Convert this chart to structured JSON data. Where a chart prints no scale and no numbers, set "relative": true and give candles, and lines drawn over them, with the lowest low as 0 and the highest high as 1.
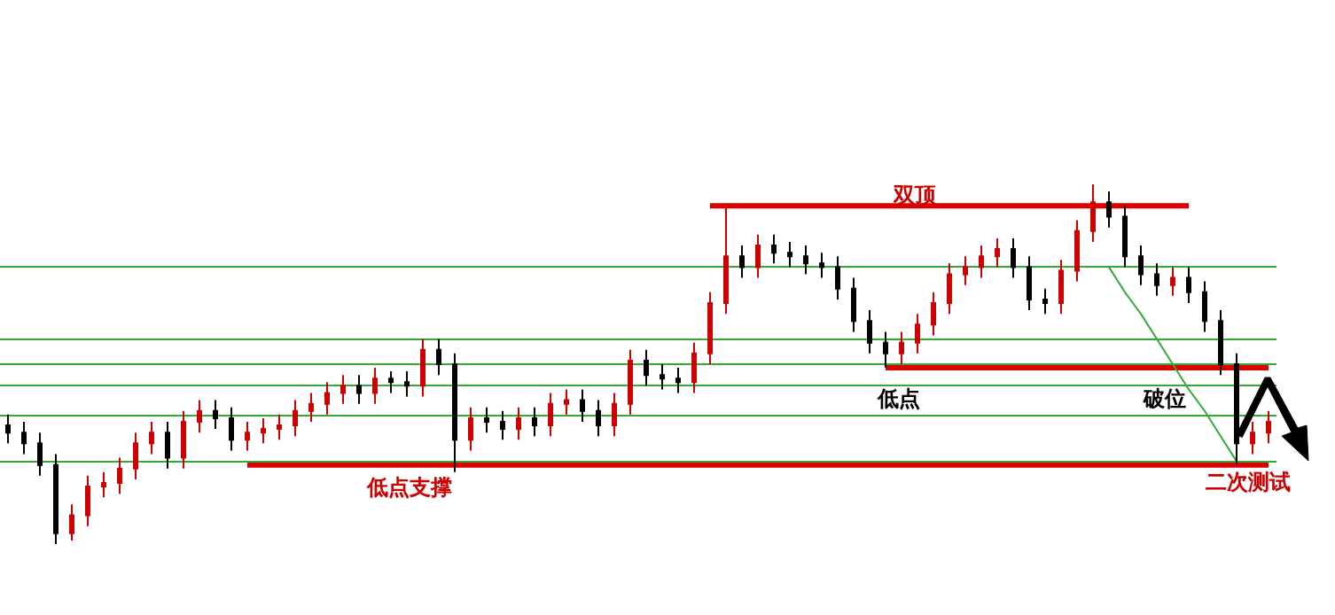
{
  "chart_data": {
    "type": "candlestick",
    "relative": true,
    "categories": [
      null,
      null,
      null,
      null,
      null,
      null,
      null,
      null,
      null,
      null,
      null,
      null,
      null,
      null,
      null,
      null,
      null,
      null,
      null,
      null,
      null,
      null,
      null,
      null,
      null,
      null,
      null,
      null,
      null,
      null,
      null,
      null,
      null,
      null,
      null,
      null,
      null,
      null,
      null,
      null,
      null,
      null,
      null,
      null,
      null,
      null,
      null,
      null,
      null,
      null,
      null,
      null,
      null,
      null,
      null,
      null,
      null,
      null,
      null,
      null,
      null,
      null,
      null,
      null,
      null,
      null,
      null,
      null,
      null,
      null,
      null,
      null,
      null,
      null,
      null,
      null,
      null,
      null,
      null,
      null
    ],
    "ohlc": [
      [
        0.33,
        0.36,
        0.28,
        0.31
      ],
      [
        0.31,
        0.34,
        0.25,
        0.28
      ],
      [
        0.28,
        0.31,
        0.19,
        0.22
      ],
      [
        0.22,
        0.25,
        0,
        0.03
      ],
      [
        0.03,
        0.11,
        0.01,
        0.08
      ],
      [
        0.08,
        0.19,
        0.05,
        0.16
      ],
      [
        0.16,
        0.2,
        0.13,
        0.17
      ],
      [
        0.17,
        0.24,
        0.14,
        0.21
      ],
      [
        0.21,
        0.31,
        0.18,
        0.28
      ],
      [
        0.28,
        0.34,
        0.25,
        0.31
      ],
      [
        0.31,
        0.34,
        0.21,
        0.24
      ],
      [
        0.24,
        0.37,
        0.21,
        0.34
      ],
      [
        0.34,
        0.4,
        0.31,
        0.37
      ],
      [
        0.37,
        0.4,
        0.32,
        0.35
      ],
      [
        0.35,
        0.38,
        0.26,
        0.29
      ],
      [
        0.29,
        0.34,
        0.26,
        0.31
      ],
      [
        0.31,
        0.35,
        0.28,
        0.32
      ],
      [
        0.32,
        0.36,
        0.29,
        0.33
      ],
      [
        0.33,
        0.4,
        0.3,
        0.37
      ],
      [
        0.37,
        0.42,
        0.34,
        0.39
      ],
      [
        0.39,
        0.45,
        0.36,
        0.42
      ],
      [
        0.42,
        0.47,
        0.39,
        0.44
      ],
      [
        0.44,
        0.47,
        0.39,
        0.42
      ],
      [
        0.42,
        0.49,
        0.39,
        0.46
      ],
      [
        0.46,
        0.48,
        0.42,
        0.45
      ],
      [
        0.45,
        0.48,
        0.41,
        0.44
      ],
      [
        0.44,
        0.57,
        0.41,
        0.54
      ],
      [
        0.54,
        0.57,
        0.47,
        0.5
      ],
      [
        0.5,
        0.53,
        0.2,
        0.29
      ],
      [
        0.29,
        0.38,
        0.26,
        0.35
      ],
      [
        0.35,
        0.38,
        0.31,
        0.34
      ],
      [
        0.34,
        0.37,
        0.29,
        0.32
      ],
      [
        0.32,
        0.38,
        0.29,
        0.35
      ],
      [
        0.35,
        0.38,
        0.3,
        0.33
      ],
      [
        0.33,
        0.42,
        0.3,
        0.39
      ],
      [
        0.39,
        0.43,
        0.36,
        0.4
      ],
      [
        0.4,
        0.43,
        0.34,
        0.37
      ],
      [
        0.37,
        0.4,
        0.3,
        0.33
      ],
      [
        0.33,
        0.42,
        0.3,
        0.39
      ],
      [
        0.39,
        0.54,
        0.36,
        0.51
      ],
      [
        0.51,
        0.54,
        0.44,
        0.47
      ],
      [
        0.47,
        0.5,
        0.43,
        0.46
      ],
      [
        0.46,
        0.49,
        0.42,
        0.45
      ],
      [
        0.45,
        0.56,
        0.42,
        0.53
      ],
      [
        0.53,
        0.7,
        0.5,
        0.67
      ],
      [
        0.67,
        0.94,
        0.64,
        0.8
      ],
      [
        0.8,
        0.83,
        0.74,
        0.77
      ],
      [
        0.77,
        0.86,
        0.74,
        0.83
      ],
      [
        0.83,
        0.86,
        0.78,
        0.81
      ],
      [
        0.81,
        0.84,
        0.77,
        0.8
      ],
      [
        0.8,
        0.83,
        0.75,
        0.78
      ],
      [
        0.78,
        0.81,
        0.74,
        0.77
      ],
      [
        0.77,
        0.8,
        0.68,
        0.71
      ],
      [
        0.71,
        0.74,
        0.59,
        0.62
      ],
      [
        0.62,
        0.65,
        0.53,
        0.56
      ],
      [
        0.56,
        0.59,
        0.49,
        0.53
      ],
      [
        0.53,
        0.59,
        0.5,
        0.56
      ],
      [
        0.56,
        0.64,
        0.53,
        0.61
      ],
      [
        0.61,
        0.7,
        0.58,
        0.67
      ],
      [
        0.67,
        0.78,
        0.64,
        0.75
      ],
      [
        0.75,
        0.8,
        0.72,
        0.77
      ],
      [
        0.77,
        0.83,
        0.74,
        0.8
      ],
      [
        0.8,
        0.85,
        0.77,
        0.82
      ],
      [
        0.82,
        0.85,
        0.74,
        0.77
      ],
      [
        0.77,
        0.8,
        0.65,
        0.68
      ],
      [
        0.68,
        0.71,
        0.64,
        0.67
      ],
      [
        0.67,
        0.79,
        0.64,
        0.76
      ],
      [
        0.76,
        0.9,
        0.73,
        0.87
      ],
      [
        0.87,
        1,
        0.84,
        0.95
      ],
      [
        0.95,
        0.98,
        0.88,
        0.91
      ],
      [
        0.91,
        0.94,
        0.77,
        0.8
      ],
      [
        0.8,
        0.83,
        0.72,
        0.75
      ],
      [
        0.75,
        0.78,
        0.69,
        0.72
      ],
      [
        0.72,
        0.77,
        0.69,
        0.74
      ],
      [
        0.74,
        0.77,
        0.67,
        0.7
      ],
      [
        0.7,
        0.73,
        0.59,
        0.62
      ],
      [
        0.62,
        0.65,
        0.47,
        0.5
      ],
      [
        0.5,
        0.53,
        0.22,
        0.28
      ],
      [
        0.28,
        0.34,
        0.25,
        0.31
      ],
      [
        0.31,
        0.37,
        0.28,
        0.34
      ]
    ],
    "colors": [
      "#000000",
      "#000000",
      "#000000",
      "#000000",
      "#cc0000",
      "#cc0000",
      "#cc0000",
      "#cc0000",
      "#cc0000",
      "#cc0000",
      "#000000",
      "#cc0000",
      "#cc0000",
      "#000000",
      "#000000",
      "#cc0000",
      "#cc0000",
      "#cc0000",
      "#cc0000",
      "#cc0000",
      "#cc0000",
      "#cc0000",
      "#000000",
      "#cc0000",
      "#000000",
      "#000000",
      "#cc0000",
      "#000000",
      "#000000",
      "#cc0000",
      "#000000",
      "#000000",
      "#cc0000",
      "#000000",
      "#cc0000",
      "#cc0000",
      "#000000",
      "#000000",
      "#cc0000",
      "#cc0000",
      "#000000",
      "#000000",
      "#000000",
      "#cc0000",
      "#cc0000",
      "#cc0000",
      "#000000",
      "#cc0000",
      "#000000",
      "#000000",
      "#000000",
      "#000000",
      "#000000",
      "#000000",
      "#000000",
      "#000000",
      "#cc0000",
      "#cc0000",
      "#cc0000",
      "#cc0000",
      "#cc0000",
      "#cc0000",
      "#cc0000",
      "#000000",
      "#000000",
      "#000000",
      "#cc0000",
      "#cc0000",
      "#cc0000",
      "#000000",
      "#000000",
      "#000000",
      "#000000",
      "#cc0000",
      "#000000",
      "#000000",
      "#000000",
      "#000000",
      "#cc0000",
      "#cc0000"
    ],
    "series": [
      {
        "type": "line",
        "color": "#dd0000",
        "values": [
          null,
          null,
          null,
          null,
          null,
          null,
          null,
          null,
          null,
          null,
          null,
          null,
          null,
          null,
          null,
          null,
          null,
          null,
          null,
          null,
          null,
          null,
          null,
          null,
          null,
          null,
          null,
          null,
          null,
          null,
          null,
          null,
          null,
          null,
          null,
          null,
          null,
          null,
          null,
          null,
          null,
          null,
          null,
          null,
          0.94,
          0.94,
          0.94,
          0.94,
          0.94,
          0.94,
          0.94,
          0.94,
          0.94,
          0.94,
          0.94,
          0.94,
          0.94,
          0.94,
          0.94,
          0.94,
          0.94,
          0.94,
          0.94,
          0.94,
          0.94,
          0.94,
          0.94,
          0.94,
          0.94,
          0.94,
          0.94,
          0.94,
          0.94,
          0.94,
          0.94,
          null,
          null,
          null,
          null,
          null
        ]
      },
      {
        "type": "line",
        "color": "#dd0000",
        "values": [
          null,
          null,
          null,
          null,
          null,
          null,
          null,
          null,
          null,
          null,
          null,
          null,
          null,
          null,
          null,
          null,
          null,
          null,
          null,
          null,
          null,
          null,
          null,
          null,
          null,
          null,
          null,
          null,
          null,
          null,
          null,
          null,
          null,
          null,
          null,
          null,
          null,
          null,
          null,
          null,
          null,
          null,
          null,
          null,
          null,
          null,
          null,
          null,
          null,
          null,
          null,
          null,
          null,
          null,
          null,
          0.49,
          0.49,
          0.49,
          0.49,
          0.49,
          0.49,
          0.49,
          0.49,
          0.49,
          0.49,
          0.49,
          0.49,
          0.49,
          0.49,
          0.49,
          0.49,
          0.49,
          0.49,
          0.49,
          0.49,
          0.49,
          0.49,
          0.49,
          0.49,
          0.49
        ]
      },
      {
        "type": "line",
        "color": "#dd0000",
        "values": [
          null,
          null,
          null,
          null,
          null,
          null,
          null,
          null,
          null,
          null,
          null,
          null,
          null,
          null,
          null,
          0.22,
          0.22,
          0.22,
          0.22,
          0.22,
          0.22,
          0.22,
          0.22,
          0.22,
          0.22,
          0.22,
          0.22,
          0.22,
          0.22,
          0.22,
          0.22,
          0.22,
          0.22,
          0.22,
          0.22,
          0.22,
          0.22,
          0.22,
          0.22,
          0.22,
          0.22,
          0.22,
          0.22,
          0.22,
          0.22,
          0.22,
          0.22,
          0.22,
          0.22,
          0.22,
          0.22,
          0.22,
          0.22,
          0.22,
          0.22,
          0.22,
          0.22,
          0.22,
          0.22,
          0.22,
          0.22,
          0.22,
          0.22,
          0.22,
          0.22,
          0.22,
          0.22,
          0.22,
          0.22,
          0.22,
          0.22,
          0.22,
          0.22,
          0.22,
          0.22,
          0.22,
          0.22,
          0.22,
          0.22,
          0.22
        ]
      },
      {
        "type": "line",
        "color": "#33aa33",
        "values": [
          null,
          null,
          null,
          null,
          null,
          null,
          null,
          null,
          null,
          null,
          null,
          null,
          null,
          null,
          null,
          null,
          null,
          null,
          null,
          null,
          null,
          null,
          null,
          null,
          null,
          null,
          null,
          null,
          null,
          null,
          null,
          null,
          null,
          null,
          null,
          null,
          null,
          null,
          null,
          null,
          null,
          null,
          null,
          null,
          null,
          null,
          null,
          null,
          null,
          null,
          null,
          null,
          null,
          null,
          null,
          null,
          null,
          null,
          null,
          null,
          null,
          null,
          null,
          null,
          null,
          null,
          null,
          null,
          null,
          0.77,
          0.7,
          0.64,
          0.57,
          0.5,
          0.43,
          0.37,
          0.3,
          0.23,
          null,
          null
        ]
      }
    ],
    "ref_lines": [
      {
        "axis": "y",
        "value": 0.77,
        "color": "#33aa33"
      },
      {
        "axis": "y",
        "value": 0.57,
        "color": "#33aa33"
      },
      {
        "axis": "y",
        "value": 0.5,
        "color": "#33aa33"
      },
      {
        "axis": "y",
        "value": 0.44,
        "color": "#33aa33"
      },
      {
        "axis": "y",
        "value": 0.36,
        "color": "#33aa33"
      },
      {
        "axis": "y",
        "value": 0.23,
        "color": "#33aa33"
      }
    ],
    "annotations": [
      "双顶",
      "低点",
      "破位",
      "低点支撑",
      "二次测试"
    ],
    "grid": false
  }
}
